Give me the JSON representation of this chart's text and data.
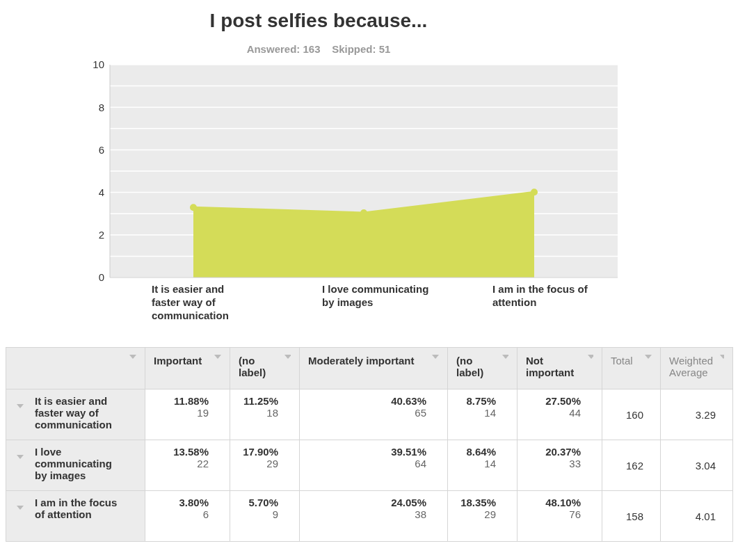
{
  "chart_data": [
    {
      "type": "area",
      "title": "I post selfies because...",
      "subtitle": "Answered: 163    Skipped: 51",
      "categories": [
        "It is easier and faster way of communication",
        "I love communicating by images",
        "I am in the focus of attention"
      ],
      "series": [
        {
          "color": "#d4dc58",
          "values": [
            3.29,
            3.04,
            4.01
          ]
        }
      ],
      "ylim": [
        0,
        10
      ],
      "yticks": [
        0,
        {
          "value": 1,
          "label": null
        },
        2,
        {
          "value": 3,
          "label": null
        },
        4,
        {
          "value": 5,
          "label": null
        },
        6,
        {
          "value": 7,
          "label": null
        },
        8,
        {
          "value": 9,
          "label": null
        },
        10
      ],
      "grid": "y",
      "marker": "circle"
    },
    {
      "type": "other",
      "categories": [
        null,
        "Important",
        "(no label)",
        "Moderately important",
        "(no label)",
        "Not important",
        "Total",
        "Weighted Average"
      ],
      "y_categories": [
        "It is easier and faster way of communication",
        "I love communicating by images",
        "I am in the focus of attention"
      ],
      "cell_labels": [
        [
          "11.88%\n19",
          "11.25%\n18",
          "40.63%\n65",
          "8.75%\n14",
          "27.50%\n44",
          "160",
          "3.29"
        ],
        [
          "13.58%\n22",
          "17.90%\n29",
          "39.51%\n64",
          "8.64%\n14",
          "20.37%\n33",
          "162",
          "3.04"
        ],
        [
          "3.80%\n6",
          "5.70%\n9",
          "24.05%\n38",
          "18.35%\n29",
          "48.10%\n76",
          "158",
          "4.01"
        ]
      ]
    }
  ]
}
